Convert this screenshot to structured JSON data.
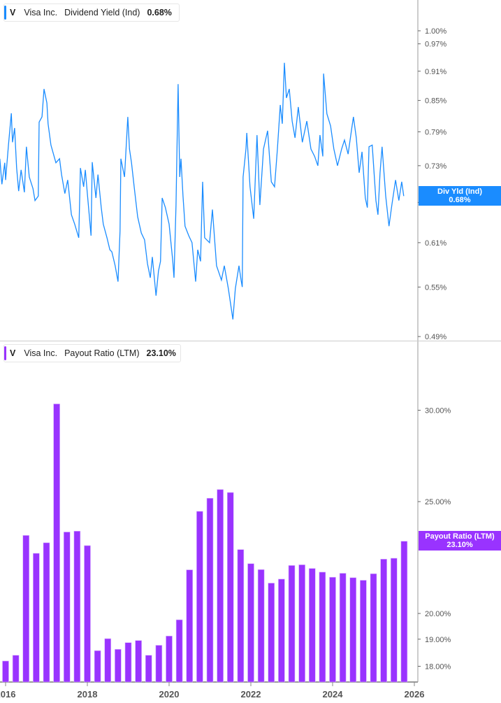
{
  "colors": {
    "yield": "#1a8cff",
    "payout": "#9933ff",
    "axis": "#999999"
  },
  "top_legend": {
    "ticker": "V",
    "company": "Visa Inc.",
    "metric": "Dividend Yield (Ind)",
    "value": "0.68%"
  },
  "top_tag": {
    "label": "Div Yld (Ind)",
    "value": "0.68%"
  },
  "bottom_legend": {
    "ticker": "V",
    "company": "Visa Inc.",
    "metric": "Payout Ratio (LTM)",
    "value": "23.10%"
  },
  "bottom_tag": {
    "label": "Payout Ratio (LTM)",
    "value": "23.10%"
  },
  "chart_data": [
    {
      "type": "line",
      "scale": "log",
      "series": [
        {
          "name": "Dividend Yield (Ind)",
          "unit": "%"
        }
      ],
      "yticks": [
        "1.00%",
        "0.97%",
        "0.91%",
        "0.85%",
        "0.79%",
        "0.73%",
        "0.67%",
        "0.61%",
        "0.55%",
        "0.49%"
      ],
      "ytick_values": [
        1.0,
        0.97,
        0.91,
        0.85,
        0.79,
        0.73,
        0.67,
        0.61,
        0.55,
        0.49
      ],
      "ylim": [
        0.49,
        1.0
      ],
      "points": [
        [
          2015.86,
          0.742
        ],
        [
          2015.91,
          0.699
        ],
        [
          2015.98,
          0.735
        ],
        [
          2016.0,
          0.706
        ],
        [
          2016.07,
          0.766
        ],
        [
          2016.14,
          0.825
        ],
        [
          2016.17,
          0.771
        ],
        [
          2016.22,
          0.797
        ],
        [
          2016.27,
          0.726
        ],
        [
          2016.32,
          0.688
        ],
        [
          2016.38,
          0.723
        ],
        [
          2016.46,
          0.686
        ],
        [
          2016.51,
          0.763
        ],
        [
          2016.58,
          0.711
        ],
        [
          2016.67,
          0.692
        ],
        [
          2016.72,
          0.673
        ],
        [
          2016.8,
          0.68
        ],
        [
          2016.82,
          0.808
        ],
        [
          2016.89,
          0.818
        ],
        [
          2016.94,
          0.873
        ],
        [
          2017.01,
          0.845
        ],
        [
          2017.04,
          0.805
        ],
        [
          2017.11,
          0.766
        ],
        [
          2017.23,
          0.735
        ],
        [
          2017.32,
          0.742
        ],
        [
          2017.37,
          0.715
        ],
        [
          2017.45,
          0.684
        ],
        [
          2017.52,
          0.706
        ],
        [
          2017.61,
          0.651
        ],
        [
          2017.69,
          0.637
        ],
        [
          2017.79,
          0.617
        ],
        [
          2017.83,
          0.726
        ],
        [
          2017.91,
          0.695
        ],
        [
          2017.95,
          0.723
        ],
        [
          2018.0,
          0.684
        ],
        [
          2018.09,
          0.62
        ],
        [
          2018.12,
          0.736
        ],
        [
          2018.21,
          0.677
        ],
        [
          2018.26,
          0.715
        ],
        [
          2018.34,
          0.662
        ],
        [
          2018.39,
          0.637
        ],
        [
          2018.48,
          0.617
        ],
        [
          2018.55,
          0.6
        ],
        [
          2018.6,
          0.597
        ],
        [
          2018.68,
          0.578
        ],
        [
          2018.75,
          0.557
        ],
        [
          2018.8,
          0.627
        ],
        [
          2018.82,
          0.742
        ],
        [
          2018.91,
          0.711
        ],
        [
          2018.99,
          0.818
        ],
        [
          2019.03,
          0.759
        ],
        [
          2019.08,
          0.735
        ],
        [
          2019.15,
          0.692
        ],
        [
          2019.23,
          0.648
        ],
        [
          2019.32,
          0.624
        ],
        [
          2019.4,
          0.614
        ],
        [
          2019.47,
          0.581
        ],
        [
          2019.54,
          0.562
        ],
        [
          2019.59,
          0.59
        ],
        [
          2019.68,
          0.539
        ],
        [
          2019.74,
          0.571
        ],
        [
          2019.79,
          0.584
        ],
        [
          2019.83,
          0.677
        ],
        [
          2019.91,
          0.662
        ],
        [
          2020.0,
          0.637
        ],
        [
          2020.09,
          0.584
        ],
        [
          2020.12,
          0.562
        ],
        [
          2020.17,
          0.666
        ],
        [
          2020.22,
          0.883
        ],
        [
          2020.26,
          0.711
        ],
        [
          2020.29,
          0.742
        ],
        [
          2020.34,
          0.68
        ],
        [
          2020.39,
          0.634
        ],
        [
          2020.48,
          0.62
        ],
        [
          2020.56,
          0.61
        ],
        [
          2020.65,
          0.557
        ],
        [
          2020.7,
          0.6
        ],
        [
          2020.77,
          0.584
        ],
        [
          2020.82,
          0.703
        ],
        [
          2020.87,
          0.617
        ],
        [
          2020.99,
          0.61
        ],
        [
          2021.06,
          0.659
        ],
        [
          2021.16,
          0.578
        ],
        [
          2021.28,
          0.559
        ],
        [
          2021.35,
          0.578
        ],
        [
          2021.45,
          0.548
        ],
        [
          2021.56,
          0.51
        ],
        [
          2021.62,
          0.548
        ],
        [
          2021.71,
          0.578
        ],
        [
          2021.76,
          0.559
        ],
        [
          2021.79,
          0.55
        ],
        [
          2021.81,
          0.711
        ],
        [
          2021.88,
          0.759
        ],
        [
          2021.9,
          0.788
        ],
        [
          2021.98,
          0.695
        ],
        [
          2022.07,
          0.645
        ],
        [
          2022.15,
          0.784
        ],
        [
          2022.22,
          0.666
        ],
        [
          2022.31,
          0.759
        ],
        [
          2022.41,
          0.792
        ],
        [
          2022.5,
          0.703
        ],
        [
          2022.58,
          0.695
        ],
        [
          2022.65,
          0.759
        ],
        [
          2022.72,
          0.841
        ],
        [
          2022.77,
          0.805
        ],
        [
          2022.82,
          0.928
        ],
        [
          2022.87,
          0.855
        ],
        [
          2022.94,
          0.873
        ],
        [
          2023.01,
          0.81
        ],
        [
          2023.08,
          0.779
        ],
        [
          2023.16,
          0.837
        ],
        [
          2023.26,
          0.771
        ],
        [
          2023.37,
          0.81
        ],
        [
          2023.47,
          0.759
        ],
        [
          2023.56,
          0.746
        ],
        [
          2023.64,
          0.73
        ],
        [
          2023.69,
          0.784
        ],
        [
          2023.76,
          0.746
        ],
        [
          2023.78,
          0.905
        ],
        [
          2023.86,
          0.824
        ],
        [
          2023.95,
          0.801
        ],
        [
          2024.03,
          0.759
        ],
        [
          2024.12,
          0.73
        ],
        [
          2024.22,
          0.759
        ],
        [
          2024.29,
          0.775
        ],
        [
          2024.38,
          0.75
        ],
        [
          2024.46,
          0.792
        ],
        [
          2024.51,
          0.818
        ],
        [
          2024.58,
          0.779
        ],
        [
          2024.65,
          0.718
        ],
        [
          2024.72,
          0.754
        ],
        [
          2024.8,
          0.677
        ],
        [
          2024.85,
          0.662
        ],
        [
          2024.89,
          0.763
        ],
        [
          2024.97,
          0.766
        ],
        [
          2025.06,
          0.673
        ],
        [
          2025.11,
          0.651
        ],
        [
          2025.16,
          0.718
        ],
        [
          2025.21,
          0.763
        ],
        [
          2025.3,
          0.68
        ],
        [
          2025.38,
          0.634
        ],
        [
          2025.45,
          0.666
        ],
        [
          2025.54,
          0.706
        ],
        [
          2025.62,
          0.673
        ],
        [
          2025.69,
          0.703
        ],
        [
          2025.74,
          0.68
        ]
      ]
    },
    {
      "type": "bar",
      "scale": "log",
      "series": [
        {
          "name": "Payout Ratio (LTM)",
          "unit": "%"
        }
      ],
      "yticks": [
        "30.00%",
        "25.00%",
        "20.00%",
        "19.00%",
        "18.00%"
      ],
      "ytick_values": [
        30,
        25,
        20,
        19,
        18
      ],
      "categories": [
        "2015-12",
        "2016-03",
        "2016-06",
        "2016-09",
        "2016-12",
        "2017-03",
        "2017-06",
        "2017-09",
        "2017-12",
        "2018-03",
        "2018-06",
        "2018-09",
        "2018-12",
        "2019-03",
        "2019-06",
        "2019-09",
        "2019-12",
        "2020-03",
        "2020-06",
        "2020-09",
        "2020-12",
        "2021-03",
        "2021-06",
        "2021-09",
        "2021-12",
        "2022-03",
        "2022-06",
        "2022-09",
        "2022-12",
        "2023-03",
        "2023-06",
        "2023-09",
        "2023-12",
        "2024-03",
        "2024-06",
        "2024-09",
        "2024-12",
        "2025-03",
        "2025-06",
        "2025-09"
      ],
      "values": [
        18.19,
        18.4,
        23.37,
        22.55,
        23.03,
        30.38,
        23.53,
        23.57,
        22.9,
        18.57,
        19.02,
        18.62,
        18.87,
        18.95,
        18.4,
        18.77,
        19.12,
        19.75,
        21.82,
        24.52,
        25.17,
        25.61,
        25.46,
        22.72,
        22.09,
        21.83,
        21.25,
        21.42,
        22.01,
        22.04,
        21.88,
        21.72,
        21.5,
        21.67,
        21.48,
        21.37,
        21.65,
        22.29,
        22.33,
        23.1
      ]
    }
  ],
  "xaxis": {
    "ticks": [
      "2016",
      "2018",
      "2020",
      "2022",
      "2024",
      "2026"
    ],
    "tick_years": [
      2016,
      2018,
      2020,
      2022,
      2024,
      2026
    ]
  }
}
